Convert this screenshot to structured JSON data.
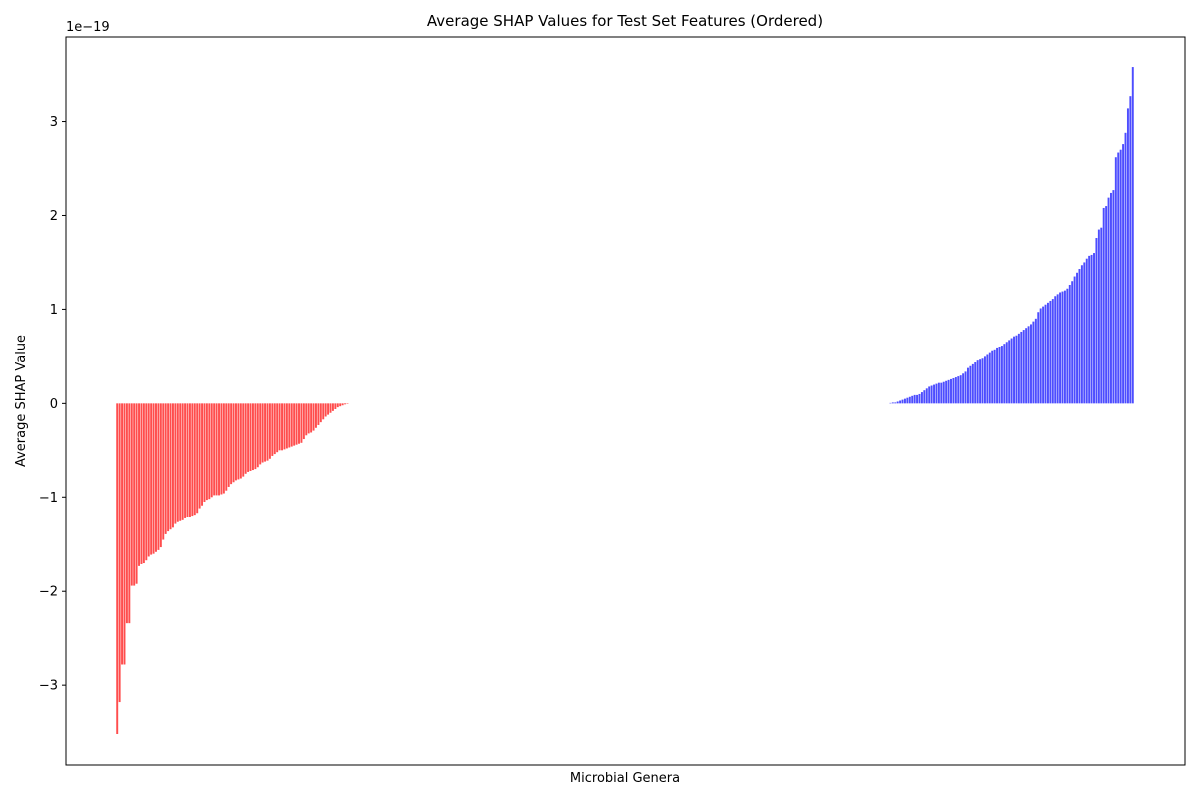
{
  "chart_data": {
    "type": "bar",
    "title": "Average SHAP Values for Test Set Features (Ordered)",
    "xlabel": "Microbial Genera",
    "ylabel": "Average SHAP Value",
    "y_offset_text": "1e−19",
    "y_scale": 1e-19,
    "ylim": [
      -3.85,
      3.9
    ],
    "yticks": [
      -3,
      -2,
      -1,
      0,
      1,
      2,
      3
    ],
    "ytick_labels": [
      "−3",
      "−2",
      "−1",
      "0",
      "1",
      "2",
      "3"
    ],
    "grid": false,
    "legend": "none",
    "negative_color": "#ff4d4d",
    "positive_color": "#4d4dff",
    "categories_note": "x tick labels are not shown",
    "series": [
      {
        "values": [
          -3.52,
          -3.18,
          -2.78,
          -2.78,
          -2.34,
          -2.34,
          -1.94,
          -1.94,
          -1.92,
          -1.73,
          -1.71,
          -1.7,
          -1.67,
          -1.63,
          -1.61,
          -1.6,
          -1.58,
          -1.56,
          -1.53,
          -1.45,
          -1.39,
          -1.36,
          -1.34,
          -1.32,
          -1.28,
          -1.26,
          -1.25,
          -1.24,
          -1.22,
          -1.21,
          -1.21,
          -1.2,
          -1.19,
          -1.17,
          -1.12,
          -1.09,
          -1.05,
          -1.03,
          -1.02,
          -1.0,
          -0.98,
          -0.98,
          -0.98,
          -0.97,
          -0.96,
          -0.93,
          -0.89,
          -0.86,
          -0.84,
          -0.82,
          -0.81,
          -0.8,
          -0.78,
          -0.75,
          -0.73,
          -0.72,
          -0.71,
          -0.7,
          -0.68,
          -0.65,
          -0.63,
          -0.62,
          -0.61,
          -0.59,
          -0.56,
          -0.54,
          -0.52,
          -0.5,
          -0.5,
          -0.49,
          -0.48,
          -0.47,
          -0.46,
          -0.45,
          -0.44,
          -0.43,
          -0.42,
          -0.38,
          -0.34,
          -0.32,
          -0.31,
          -0.29,
          -0.26,
          -0.23,
          -0.2,
          -0.17,
          -0.14,
          -0.12,
          -0.1,
          -0.08,
          -0.06,
          -0.04,
          -0.03,
          -0.02,
          -0.01,
          -0.005,
          0,
          0,
          0,
          0,
          0,
          0,
          0,
          0,
          0,
          0,
          0,
          0,
          0,
          0,
          0,
          0,
          0,
          0,
          0,
          0,
          0,
          0,
          0,
          0,
          0,
          0,
          0,
          0,
          0,
          0,
          0,
          0,
          0,
          0,
          0,
          0,
          0,
          0,
          0,
          0,
          0,
          0,
          0,
          0,
          0,
          0,
          0,
          0,
          0,
          0,
          0,
          0,
          0,
          0,
          0,
          0,
          0,
          0,
          0,
          0,
          0,
          0,
          0,
          0,
          0,
          0,
          0,
          0,
          0,
          0,
          0,
          0,
          0,
          0,
          0,
          0,
          0,
          0,
          0,
          0,
          0,
          0,
          0,
          0,
          0,
          0,
          0,
          0,
          0,
          0,
          0,
          0,
          0,
          0,
          0,
          0,
          0,
          0,
          0,
          0,
          0,
          0,
          0,
          0,
          0,
          0,
          0,
          0,
          0,
          0,
          0,
          0,
          0,
          0,
          0,
          0,
          0,
          0,
          0,
          0,
          0,
          0,
          0,
          0,
          0,
          0,
          0,
          0,
          0,
          0,
          0,
          0,
          0,
          0,
          0,
          0,
          0,
          0,
          0,
          0,
          0,
          0,
          0,
          0,
          0,
          0,
          0,
          0,
          0,
          0,
          0,
          0,
          0,
          0,
          0,
          0,
          0,
          0,
          0,
          0,
          0,
          0,
          0,
          0,
          0,
          0,
          0,
          0,
          0,
          0,
          0,
          0,
          0,
          0,
          0,
          0,
          0,
          0,
          0,
          0,
          0,
          0,
          0,
          0,
          0,
          0,
          0,
          0,
          0,
          0,
          0,
          0,
          0,
          0,
          0,
          0,
          0,
          0,
          0,
          0,
          0,
          0,
          0,
          0,
          0,
          0,
          0,
          0,
          0,
          0,
          0,
          0,
          0,
          0,
          0,
          0,
          0,
          0,
          0,
          0,
          0,
          0,
          0,
          0.005,
          0.01,
          0.01,
          0.02,
          0.03,
          0.04,
          0.05,
          0.06,
          0.07,
          0.08,
          0.09,
          0.09,
          0.1,
          0.12,
          0.14,
          0.16,
          0.18,
          0.19,
          0.2,
          0.21,
          0.22,
          0.22,
          0.23,
          0.24,
          0.25,
          0.26,
          0.27,
          0.28,
          0.29,
          0.3,
          0.32,
          0.34,
          0.38,
          0.4,
          0.42,
          0.44,
          0.46,
          0.47,
          0.48,
          0.5,
          0.52,
          0.54,
          0.56,
          0.57,
          0.59,
          0.6,
          0.61,
          0.63,
          0.65,
          0.67,
          0.69,
          0.71,
          0.72,
          0.74,
          0.76,
          0.78,
          0.8,
          0.82,
          0.84,
          0.87,
          0.9,
          0.97,
          1.01,
          1.03,
          1.05,
          1.07,
          1.09,
          1.11,
          1.14,
          1.16,
          1.18,
          1.19,
          1.2,
          1.22,
          1.26,
          1.3,
          1.35,
          1.39,
          1.43,
          1.47,
          1.5,
          1.54,
          1.57,
          1.58,
          1.6,
          1.76,
          1.85,
          1.87,
          2.08,
          2.1,
          2.19,
          2.24,
          2.27,
          2.62,
          2.67,
          2.7,
          2.76,
          2.88,
          3.14,
          3.27,
          3.58
        ]
      }
    ]
  }
}
